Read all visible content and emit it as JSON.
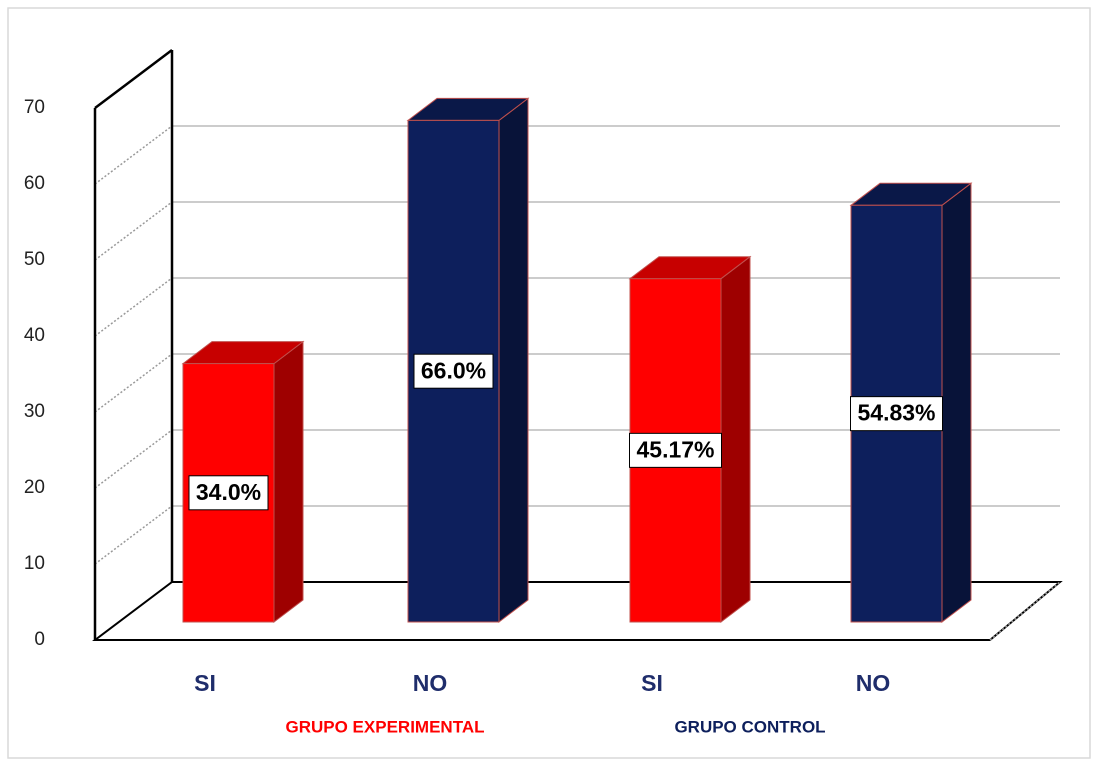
{
  "chart_data": {
    "type": "bar",
    "categories": [
      "SI",
      "NO",
      "SI",
      "NO"
    ],
    "values": [
      34.0,
      66.0,
      45.17,
      54.83
    ],
    "value_labels": [
      "34.0%",
      "66.0%",
      "45.17%",
      "54.83%"
    ],
    "colors": [
      "#ff0000",
      "#0d1f5c",
      "#ff0000",
      "#0d1f5c"
    ],
    "groups": [
      {
        "label": "GRUPO EXPERIMENTAL",
        "color": "#ff0000"
      },
      {
        "label": "GRUPO CONTROL",
        "color": "#0d1f5c"
      }
    ],
    "ylim": [
      0,
      70
    ],
    "yticks": [
      0,
      10,
      20,
      30,
      40,
      50,
      60,
      70
    ],
    "grid": true
  }
}
